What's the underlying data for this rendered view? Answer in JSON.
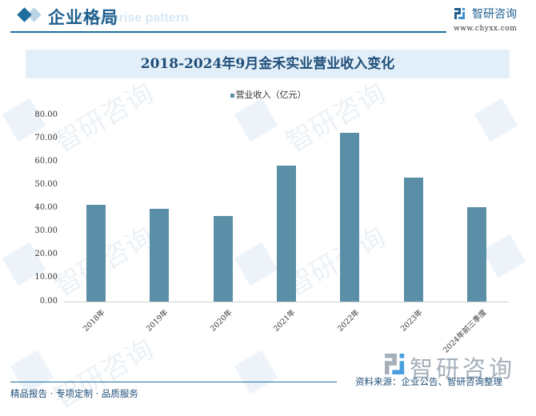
{
  "header": {
    "section_title": "企业格局",
    "section_subtitle": "Enterprise pattern",
    "logo_name": "智研咨询",
    "logo_url": "www.chyxx.com"
  },
  "chart_data": {
    "type": "bar",
    "title": "2018-2024年9月金禾实业营业收入变化",
    "legend": [
      "营业收入（亿元）"
    ],
    "legend_position": "top",
    "xlabel": "",
    "ylabel": "",
    "ylim": [
      0,
      80
    ],
    "y_ticks": [
      "80.00",
      "70.00",
      "60.00",
      "50.00",
      "40.00",
      "30.00",
      "20.00",
      "10.00",
      "0.00"
    ],
    "grid": false,
    "categories": [
      "2018年",
      "2019年",
      "2020年",
      "2021年",
      "2022年",
      "2023年",
      "2024年前三季度"
    ],
    "series": [
      {
        "name": "营业收入（亿元）",
        "color": "#5b8fa8",
        "values": [
          41.6,
          39.9,
          36.8,
          58.4,
          72.5,
          53.3,
          40.5
        ]
      }
    ]
  },
  "footer": {
    "brand": "智研咨询",
    "source": "资料来源：企业公告、智研咨询整理",
    "slogan": "精品报告 · 专项定制 · 品质服务"
  },
  "colors": {
    "brand": "#1f6d9e",
    "bar": "#5b8fa8",
    "title_band": "#e3eff8"
  }
}
